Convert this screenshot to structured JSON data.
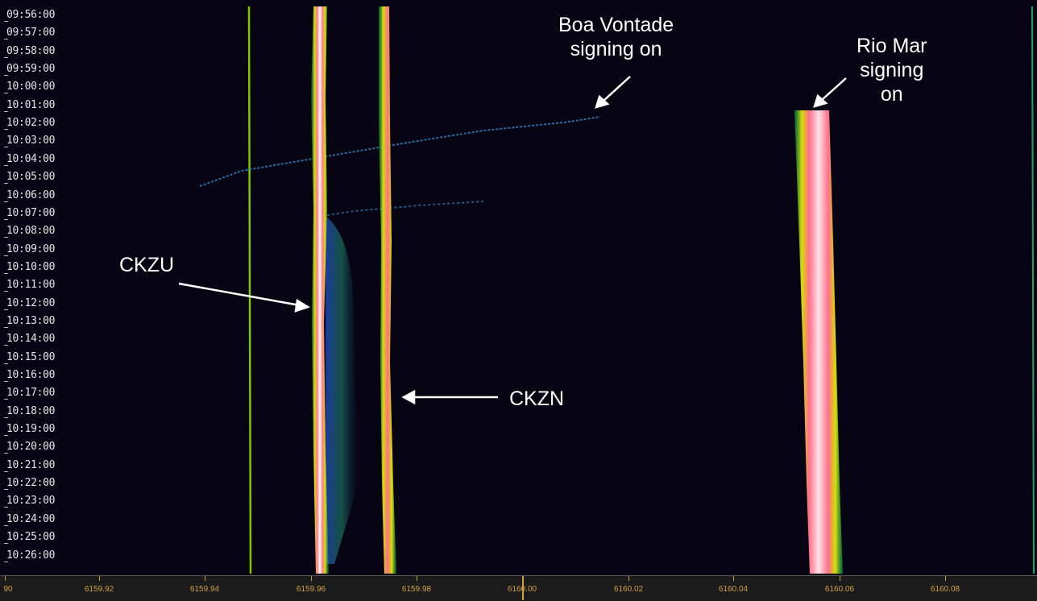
{
  "time_axis": {
    "labels": [
      "09:56:00",
      "09:57:00",
      "09:58:00",
      "09:59:00",
      "10:00:00",
      "10:01:00",
      "10:02:00",
      "10:03:00",
      "10:04:00",
      "10:05:00",
      "10:06:00",
      "10:07:00",
      "10:08:00",
      "10:09:00",
      "10:10:00",
      "10:11:00",
      "10:12:00",
      "10:13:00",
      "10:14:00",
      "10:15:00",
      "10:16:00",
      "10:17:00",
      "10:18:00",
      "10:19:00",
      "10:20:00",
      "10:21:00",
      "10:22:00",
      "10:23:00",
      "10:24:00",
      "10:25:00",
      "10:26:00"
    ]
  },
  "freq_axis": {
    "labels": [
      "90",
      "6159.92",
      "6159.94",
      "6159.96",
      "6159.98",
      "6160.00",
      "6160.02",
      "6160.04",
      "6160.06",
      "6160.08"
    ]
  },
  "annotations": {
    "boa_vontade": {
      "line1": "Boa Vontade",
      "line2": "signing on"
    },
    "rio_mar": {
      "line1": "Rio Mar",
      "line2": "signing",
      "line3": "on"
    },
    "ckzu": "CKZU",
    "ckzn": "CKZN"
  },
  "colors": {
    "background": "#070413",
    "carrier_core": "#ffffff",
    "carrier_hot": "#ff6f8a",
    "carrier_warm": "#c8d400",
    "carrier_edge": "#00a860",
    "axis_text": "#d2a03a"
  }
}
